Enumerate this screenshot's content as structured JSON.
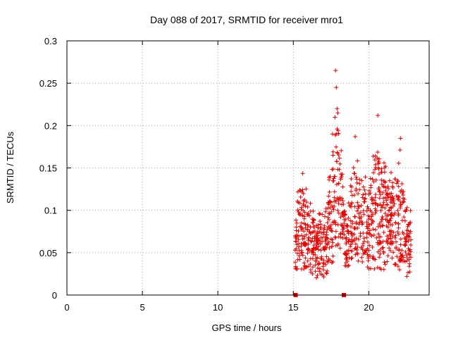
{
  "chart_data": {
    "type": "scatter",
    "title": "Day 088 of 2017, SRMTID for receiver mro1",
    "xlabel": "GPS time / hours",
    "ylabel": "SRMTID / TECUs",
    "xlim": [
      0,
      24
    ],
    "ylim": [
      0,
      0.3
    ],
    "x_ticks": [
      0,
      5,
      10,
      15,
      20
    ],
    "y_ticks": [
      0,
      0.05,
      0.1,
      0.15,
      0.2,
      0.25,
      0.3
    ],
    "y_tick_labels": [
      "0",
      "0.05",
      "0.1",
      "0.15",
      "0.2",
      "0.25",
      "0.3"
    ],
    "grid": true,
    "marker": "plus",
    "marker_color": "#e00000",
    "gap_markers": [
      15.15,
      18.35
    ],
    "series": [
      {
        "name": "SRMTID",
        "x_range": [
          15.1,
          22.8
        ],
        "points_summary": "Dense scatter of roughly 900 points between 15.1 h and 22.8 h, values mostly 0.02-0.15 TECU, peak near 0.265 TECU at about 17.8 h",
        "envelope": [
          {
            "x": 15.1,
            "y_low": 0.03,
            "y_high": 0.09
          },
          {
            "x": 15.5,
            "y_low": 0.03,
            "y_high": 0.16
          },
          {
            "x": 16.0,
            "y_low": 0.03,
            "y_high": 0.12
          },
          {
            "x": 16.5,
            "y_low": 0.02,
            "y_high": 0.1
          },
          {
            "x": 17.0,
            "y_low": 0.02,
            "y_high": 0.1
          },
          {
            "x": 17.5,
            "y_low": 0.03,
            "y_high": 0.16
          },
          {
            "x": 17.8,
            "y_low": 0.05,
            "y_high": 0.265
          },
          {
            "x": 18.0,
            "y_low": 0.06,
            "y_high": 0.22
          },
          {
            "x": 18.5,
            "y_low": 0.03,
            "y_high": 0.1
          },
          {
            "x": 19.0,
            "y_low": 0.04,
            "y_high": 0.19
          },
          {
            "x": 19.5,
            "y_low": 0.04,
            "y_high": 0.14
          },
          {
            "x": 20.0,
            "y_low": 0.03,
            "y_high": 0.15
          },
          {
            "x": 20.5,
            "y_low": 0.03,
            "y_high": 0.21
          },
          {
            "x": 21.0,
            "y_low": 0.03,
            "y_high": 0.16
          },
          {
            "x": 21.5,
            "y_low": 0.04,
            "y_high": 0.15
          },
          {
            "x": 22.0,
            "y_low": 0.03,
            "y_high": 0.18
          },
          {
            "x": 22.5,
            "y_low": 0.02,
            "y_high": 0.13
          },
          {
            "x": 22.8,
            "y_low": 0.03,
            "y_high": 0.1
          }
        ],
        "highlights": [
          {
            "x": 17.8,
            "y": 0.265
          },
          {
            "x": 17.85,
            "y": 0.245
          },
          {
            "x": 17.9,
            "y": 0.22
          },
          {
            "x": 17.95,
            "y": 0.215
          },
          {
            "x": 20.6,
            "y": 0.212
          },
          {
            "x": 22.1,
            "y": 0.185
          },
          {
            "x": 17.6,
            "y": 0.19
          },
          {
            "x": 19.1,
            "y": 0.187
          }
        ]
      }
    ]
  }
}
